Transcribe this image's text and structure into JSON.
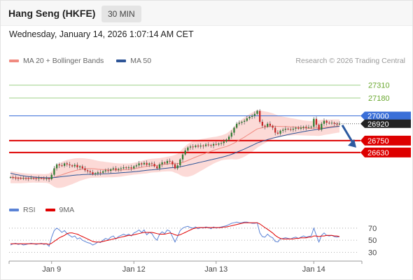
{
  "header": {
    "title": "Hang Seng (HKFE)",
    "timeframe": "30 MIN"
  },
  "datetime": "Wednesday, January 14, 2026 1:07:14 AM CET",
  "credit": "Research © 2026 Trading Central",
  "legend_top": [
    {
      "label": "MA 20 + Bollinger Bands",
      "color": "#f08a80"
    },
    {
      "label": "MA 50",
      "color": "#2e5597"
    }
  ],
  "legend_rsi": [
    {
      "label": "RSI",
      "color": "#5b83d6"
    },
    {
      "label": "9MA",
      "color": "#e00000"
    }
  ],
  "colors": {
    "resistance": "#6aa82f",
    "pivot": "#3a6fd8",
    "support": "#dd0000",
    "last_price_bg": "#222222",
    "arrow": "#2c5aa0",
    "band_fill": "#fbd3d0",
    "candle_up": "#2e7d32",
    "candle_down": "#c62828"
  },
  "chart_data": [
    {
      "type": "candlestick",
      "title": "",
      "x_ticks": [
        "Jan 9",
        "Jan 12",
        "Jan 13",
        "Jan 14"
      ],
      "price_range": [
        26240,
        27470
      ],
      "levels": [
        {
          "value": 27310,
          "label": "27310",
          "kind": "resistance"
        },
        {
          "value": 27180,
          "label": "27180",
          "kind": "resistance"
        },
        {
          "value": 27000,
          "label": "27000",
          "kind": "pivot"
        },
        {
          "value": 26920,
          "label": "26920",
          "kind": "last"
        },
        {
          "value": 26750,
          "label": "26750",
          "kind": "support"
        },
        {
          "value": 26630,
          "label": "26630",
          "kind": "support"
        }
      ],
      "close_path": [
        26380,
        26375,
        26372,
        26370,
        26368,
        26372,
        26370,
        26368,
        26374,
        26370,
        26366,
        26372,
        26370,
        26365,
        26368,
        26360,
        26405,
        26470,
        26510,
        26500,
        26495,
        26520,
        26510,
        26500,
        26490,
        26505,
        26480,
        26490,
        26470,
        26450,
        26440,
        26430,
        26410,
        26420,
        26430,
        26425,
        26440,
        26450,
        26445,
        26460,
        26470,
        26455,
        26465,
        26470,
        26480,
        26475,
        26480,
        26470,
        26490,
        26500,
        26520,
        26510,
        26525,
        26505,
        26520,
        26515,
        26490,
        26470,
        26510,
        26530,
        26520,
        26545,
        26540,
        26510,
        26470,
        26500,
        26560,
        26610,
        26650,
        26680,
        26690,
        26685,
        26700,
        26690,
        26700,
        26695,
        26710,
        26705,
        26700,
        26715,
        26710,
        26720,
        26725,
        26740,
        26760,
        26790,
        26830,
        26880,
        26920,
        26930,
        26940,
        26950,
        26975,
        26990,
        27000,
        27020,
        27050,
        26940,
        26900,
        26890,
        26920,
        26900,
        26880,
        26830,
        26820,
        26850,
        26860,
        26870,
        26865,
        26860,
        26870,
        26880,
        26870,
        26880,
        26890,
        26880,
        26885,
        26890,
        26970,
        26910,
        26860,
        26920,
        26950,
        26930,
        26925,
        26930,
        26920,
        26915,
        26920
      ],
      "ma20": [
        26380,
        26378,
        26376,
        26374,
        26372,
        26371,
        26370,
        26370,
        26370,
        26370,
        26369,
        26369,
        26369,
        26368,
        26368,
        26367,
        26370,
        26378,
        26388,
        26397,
        26405,
        26414,
        26423,
        26431,
        26438,
        26446,
        26452,
        26458,
        26462,
        26465,
        26467,
        26468,
        26466,
        26464,
        26461,
        26459,
        26458,
        26456,
        26455,
        26454,
        26453,
        26452,
        26452,
        26453,
        26455,
        26457,
        26459,
        26462,
        26466,
        26470,
        26475,
        26480,
        26485,
        26489,
        26494,
        26497,
        26499,
        26500,
        26503,
        26507,
        26510,
        26513,
        26516,
        26517,
        26516,
        26517,
        26522,
        26530,
        26540,
        26550,
        26561,
        26572,
        26583,
        26593,
        26603,
        26613,
        26623,
        26633,
        26642,
        26652,
        26660,
        26668,
        26676,
        26683,
        26690,
        26700,
        26712,
        26725,
        26740,
        26755,
        26770,
        26785,
        26802,
        26818,
        26835,
        26852,
        26868,
        26875,
        26880,
        26884,
        26890,
        26894,
        26896,
        26895,
        26893,
        26893,
        26892,
        26892,
        26891,
        26889,
        26888,
        26887,
        26884,
        26881,
        26878,
        26876,
        26874,
        26873,
        26877,
        26878,
        26877,
        26880,
        26884,
        26887,
        26889,
        26892,
        26894,
        26896,
        26898
      ],
      "ma50": [
        26420,
        26414,
        26408,
        26403,
        26398,
        26394,
        26390,
        26387,
        26384,
        26382,
        26380,
        26378,
        26377,
        26376,
        26375,
        26374,
        26375,
        26377,
        26380,
        26383,
        26386,
        26389,
        26392,
        26395,
        26398,
        26401,
        26403,
        26405,
        26407,
        26408,
        26409,
        26410,
        26410,
        26411,
        26412,
        26413,
        26414,
        26415,
        26416,
        26418,
        26420,
        26421,
        26423,
        26425,
        26427,
        26429,
        26431,
        26433,
        26436,
        26438,
        26441,
        26444,
        26447,
        26450,
        26453,
        26455,
        26458,
        26460,
        26463,
        26466,
        26469,
        26472,
        26475,
        26477,
        26479,
        26482,
        26486,
        26491,
        26496,
        26502,
        26508,
        26514,
        26520,
        26526,
        26532,
        26538,
        26544,
        26550,
        26556,
        26562,
        26568,
        26574,
        26580,
        26587,
        26594,
        26602,
        26611,
        26621,
        26632,
        26643,
        26654,
        26665,
        26677,
        26689,
        26701,
        26713,
        26726,
        26735,
        26743,
        26751,
        26760,
        26768,
        26775,
        26781,
        26787,
        26793,
        26799,
        26805,
        26811,
        26816,
        26821,
        26826,
        26831,
        26836,
        26841,
        26845,
        26849,
        26853,
        26858,
        26862,
        26865,
        26869,
        26873,
        26877,
        26881,
        26885,
        26888,
        26891,
        26894
      ],
      "band_width": [
        60,
        58,
        56,
        54,
        52,
        50,
        48,
        46,
        45,
        44,
        44,
        44,
        44,
        44,
        45,
        50,
        70,
        95,
        115,
        125,
        130,
        132,
        132,
        130,
        128,
        125,
        120,
        115,
        110,
        105,
        100,
        96,
        92,
        88,
        85,
        82,
        80,
        78,
        76,
        74,
        72,
        70,
        68,
        66,
        64,
        62,
        60,
        60,
        60,
        62,
        64,
        66,
        68,
        70,
        70,
        70,
        70,
        70,
        70,
        70,
        72,
        74,
        76,
        80,
        90,
        100,
        120,
        140,
        155,
        165,
        170,
        172,
        170,
        165,
        160,
        155,
        150,
        145,
        140,
        135,
        130,
        128,
        126,
        128,
        132,
        140,
        150,
        165,
        180,
        190,
        195,
        198,
        200,
        200,
        198,
        195,
        190,
        180,
        170,
        160,
        150,
        140,
        130,
        120,
        112,
        105,
        100,
        96,
        92,
        88,
        85,
        82,
        80,
        78,
        76,
        75,
        74,
        74,
        78,
        80,
        80,
        80,
        78,
        76,
        74,
        72,
        70,
        68,
        66
      ],
      "projection": {
        "from": 26920,
        "to": 26750
      }
    },
    {
      "type": "line",
      "title": "RSI",
      "y_ticks": [
        "70",
        "50",
        "30"
      ],
      "y_range": [
        20,
        85
      ],
      "series": [
        {
          "name": "RSI",
          "values": [
            42,
            44,
            45,
            43,
            44,
            42,
            43,
            44,
            45,
            44,
            43,
            44,
            45,
            43,
            44,
            40,
            55,
            66,
            70,
            67,
            63,
            66,
            61,
            58,
            55,
            57,
            52,
            54,
            50,
            48,
            46,
            45,
            42,
            44,
            47,
            46,
            50,
            53,
            51,
            55,
            57,
            52,
            56,
            58,
            60,
            58,
            60,
            57,
            62,
            64,
            67,
            63,
            67,
            59,
            63,
            61,
            54,
            50,
            60,
            64,
            61,
            67,
            65,
            56,
            47,
            56,
            66,
            70,
            72,
            73,
            71,
            70,
            72,
            69,
            71,
            70,
            72,
            71,
            69,
            72,
            70,
            71,
            72,
            73,
            74,
            76,
            78,
            79,
            80,
            79,
            79,
            80,
            80,
            79,
            78,
            78,
            79,
            62,
            56,
            55,
            60,
            56,
            54,
            48,
            47,
            52,
            53,
            54,
            53,
            52,
            54,
            55,
            53,
            55,
            57,
            55,
            56,
            57,
            70,
            58,
            47,
            58,
            62,
            58,
            57,
            58,
            56,
            55,
            56
          ]
        },
        {
          "name": "9MA",
          "values": [
            44,
            44,
            44,
            44,
            44,
            44,
            44,
            44,
            44,
            44,
            44,
            44,
            44,
            44,
            44,
            43,
            45,
            48,
            51,
            54,
            56,
            58,
            61,
            62,
            62,
            61,
            60,
            58,
            56,
            54,
            52,
            50,
            48,
            47,
            47,
            47,
            48,
            49,
            50,
            51,
            52,
            53,
            54,
            55,
            56,
            57,
            58,
            58,
            59,
            60,
            61,
            62,
            63,
            63,
            63,
            63,
            62,
            61,
            60,
            60,
            60,
            61,
            62,
            61,
            59,
            58,
            59,
            61,
            63,
            65,
            67,
            69,
            70,
            71,
            71,
            71,
            71,
            71,
            71,
            71,
            71,
            71,
            71,
            72,
            72,
            73,
            74,
            75,
            76,
            77,
            78,
            79,
            79,
            79,
            79,
            79,
            79,
            77,
            74,
            71,
            68,
            65,
            62,
            58,
            55,
            53,
            52,
            52,
            52,
            52,
            52,
            53,
            53,
            54,
            54,
            54,
            55,
            55,
            57,
            57,
            56,
            57,
            57,
            58,
            58,
            58,
            57,
            57,
            56
          ]
        }
      ]
    }
  ]
}
